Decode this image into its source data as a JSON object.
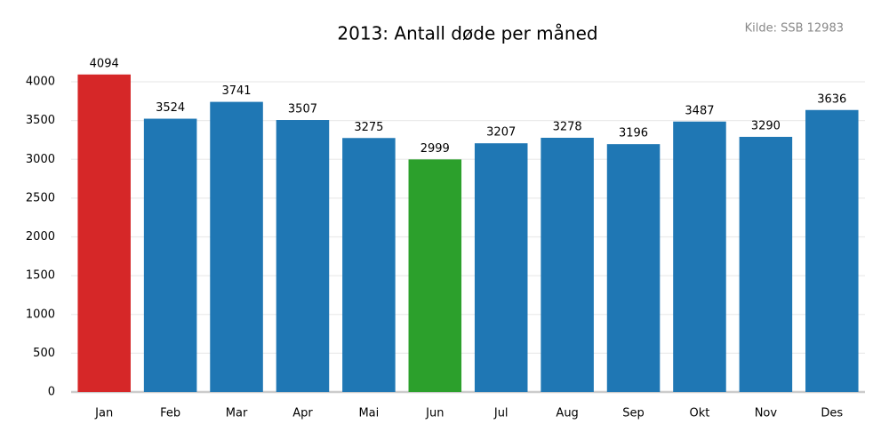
{
  "chart_data": {
    "type": "bar",
    "title": "2013: Antall døde per måned",
    "source": "Kilde: SSB 12983",
    "categories": [
      "Jan",
      "Feb",
      "Mar",
      "Apr",
      "Mai",
      "Jun",
      "Jul",
      "Aug",
      "Sep",
      "Okt",
      "Nov",
      "Des"
    ],
    "values": [
      4094,
      3524,
      3741,
      3507,
      3275,
      2999,
      3207,
      3278,
      3196,
      3487,
      3290,
      3636
    ],
    "colors": [
      "#d62728",
      "#1f77b4",
      "#1f77b4",
      "#1f77b4",
      "#1f77b4",
      "#2ca02c",
      "#1f77b4",
      "#1f77b4",
      "#1f77b4",
      "#1f77b4",
      "#1f77b4",
      "#1f77b4"
    ],
    "ylim": [
      0,
      4000
    ],
    "yticks": [
      0,
      500,
      1000,
      1500,
      2000,
      2500,
      3000,
      3500,
      4000
    ],
    "grid": true
  }
}
